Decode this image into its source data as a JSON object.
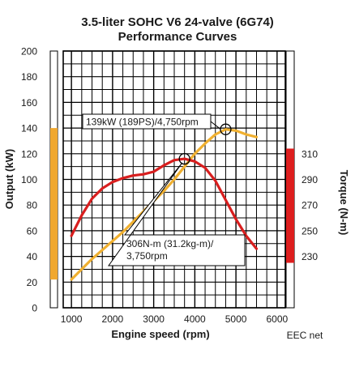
{
  "chart_data": {
    "type": "line",
    "title_line1": "3.5-liter SOHC V6 24-valve (6G74)",
    "title_line2": "Performance Curves",
    "xlabel": "Engine speed (rpm)",
    "ylabel_left": "Output (kW)",
    "ylabel_right": "Torque (N-m)",
    "footer": "EEC net",
    "xlim": [
      800,
      6200
    ],
    "ylim_left": [
      0,
      200
    ],
    "ylim_right": [
      190,
      390
    ],
    "x_ticks": [
      "1000",
      "2000",
      "3000",
      "4000",
      "5000",
      "6000"
    ],
    "y_left_ticks": [
      "0",
      "20",
      "40",
      "60",
      "80",
      "100",
      "120",
      "140",
      "160",
      "180",
      "200"
    ],
    "y_right_ticks": [
      "230",
      "250",
      "270",
      "290",
      "310"
    ],
    "y_right_tick_values": [
      230,
      250,
      270,
      290,
      310
    ],
    "left_band_range": [
      22,
      140
    ],
    "right_band_range": [
      225,
      314
    ],
    "colors": {
      "output": "#f0b030",
      "torque": "#d81e1e",
      "grid": "#000000",
      "band_left": "#f0a830",
      "band_right": "#dd1e1e"
    },
    "series": [
      {
        "name": "Output",
        "axis": "left",
        "x": [
          1000,
          1250,
          1500,
          1750,
          2000,
          2250,
          2500,
          2750,
          3000,
          3250,
          3500,
          3750,
          4000,
          4250,
          4500,
          4750,
          5000,
          5250,
          5500
        ],
        "values": [
          22,
          30,
          38,
          45,
          52,
          59,
          67,
          75,
          83,
          91,
          100,
          110,
          120,
          128,
          135,
          139,
          138,
          135,
          133
        ]
      },
      {
        "name": "Torque",
        "axis": "right",
        "x": [
          1000,
          1250,
          1500,
          1750,
          2000,
          2250,
          2500,
          2750,
          3000,
          3250,
          3500,
          3750,
          4000,
          4250,
          4500,
          4750,
          5000,
          5250,
          5500
        ],
        "values": [
          246,
          262,
          275,
          283,
          288,
          291,
          293,
          294,
          296,
          301,
          305,
          306,
          304,
          299,
          289,
          274,
          259,
          246,
          236
        ]
      }
    ],
    "annotations": [
      {
        "lines": [
          "139kW (189PS)/4,750rpm"
        ],
        "target_x": 4750,
        "target_y": 139,
        "axis": "left"
      },
      {
        "lines": [
          "306N-m (31.2kg-m)/",
          "3,750rpm"
        ],
        "target_x": 3750,
        "target_y": 306,
        "axis": "right"
      }
    ]
  }
}
